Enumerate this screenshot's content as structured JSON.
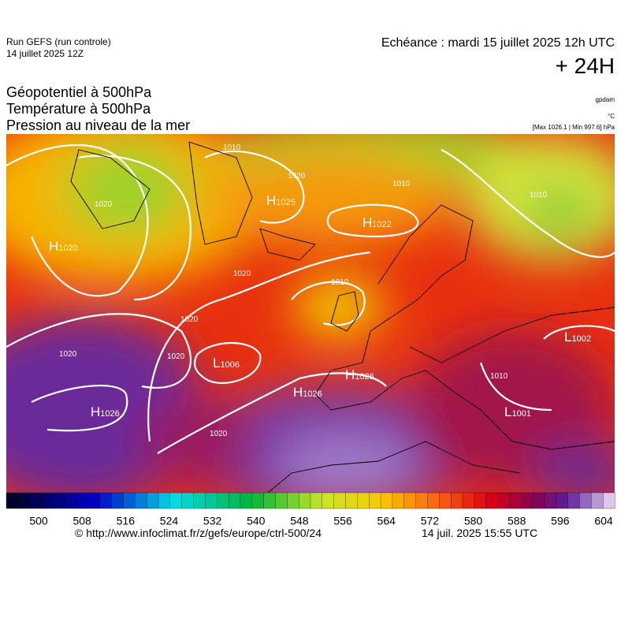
{
  "header": {
    "run": "Run GEFS (run controle)",
    "run_date": "14 juillet 2025 12Z",
    "valid": "Echéance : mardi 15 juillet 2025 12h UTC",
    "lead": "+ 24H",
    "titles": [
      "Géopotentiel à 500hPa",
      "Température à 500hPa",
      "Pression au niveau de la mer"
    ],
    "units": [
      "gpdam",
      "°C",
      "[Max 1026.1 | Min 997.6] hPa"
    ]
  },
  "map": {
    "centers": [
      {
        "letter": "H",
        "value": "1025"
      },
      {
        "letter": "H",
        "value": "1022"
      },
      {
        "letter": "L",
        "value": "1006"
      },
      {
        "letter": "H",
        "value": "1026"
      },
      {
        "letter": "H",
        "value": "1026"
      },
      {
        "letter": "H",
        "value": "1026"
      },
      {
        "letter": "L",
        "value": "1002"
      },
      {
        "letter": "L",
        "value": "1001"
      },
      {
        "letter": "H",
        "value": "1020"
      }
    ],
    "isobar_labels": [
      "1020",
      "1010",
      "1020",
      "1020",
      "1020",
      "1010",
      "1020",
      "1020",
      "1010",
      "1010",
      "1020",
      "1010"
    ]
  },
  "colorbar": {
    "ticks": [
      500,
      508,
      516,
      524,
      532,
      540,
      548,
      556,
      564,
      572,
      580,
      588,
      596,
      604
    ]
  },
  "footer": {
    "source": "© http://www.infoclimat.fr/z/gefs/europe/ctrl-500/24",
    "generated": "14 juil. 2025 15:55 UTC"
  }
}
